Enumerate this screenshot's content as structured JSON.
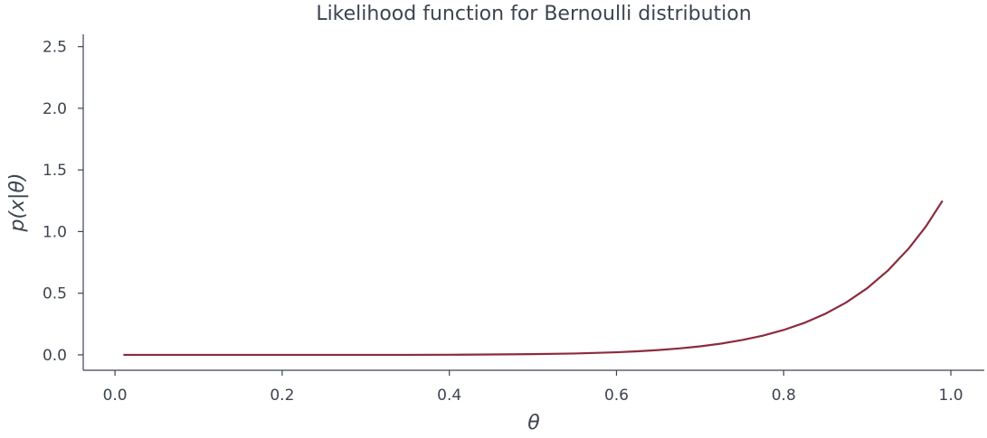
{
  "chart_data": {
    "type": "line",
    "title": "Likelihood function for Bernoulli distribution",
    "xlabel": "θ",
    "ylabel": "p(x|θ)",
    "xlim": [
      -0.038,
      1.04
    ],
    "ylim": [
      -0.125,
      2.6
    ],
    "xticks": [
      0.0,
      0.2,
      0.4,
      0.6,
      0.8,
      1.0
    ],
    "xtick_labels": [
      "0.0",
      "0.2",
      "0.4",
      "0.6",
      "0.8",
      "1.0"
    ],
    "yticks": [
      0.0,
      0.5,
      1.0,
      1.5,
      2.0,
      2.5
    ],
    "ytick_labels": [
      "0.0",
      "0.5",
      "1.0",
      "1.5",
      "2.0",
      "2.5"
    ],
    "grid": false,
    "colors": {
      "line": "#8b2c3d",
      "axis": "#3d4450"
    },
    "series": [
      {
        "x": [
          0.01,
          0.05,
          0.1,
          0.15,
          0.2,
          0.25,
          0.3,
          0.35,
          0.4,
          0.45,
          0.5,
          0.55,
          0.6,
          0.625,
          0.65,
          0.675,
          0.7,
          0.725,
          0.75,
          0.775,
          0.8,
          0.825,
          0.85,
          0.875,
          0.9,
          0.925,
          0.95,
          0.97,
          0.99
        ],
        "y": [
          0.0,
          0.0,
          0.0,
          0.0,
          0.0,
          0.0,
          0.0,
          0.0,
          0.001,
          0.003,
          0.006,
          0.011,
          0.021,
          0.029,
          0.039,
          0.052,
          0.069,
          0.091,
          0.12,
          0.156,
          0.202,
          0.26,
          0.334,
          0.426,
          0.541,
          0.686,
          0.866,
          1.04,
          1.25
        ]
      }
    ]
  }
}
